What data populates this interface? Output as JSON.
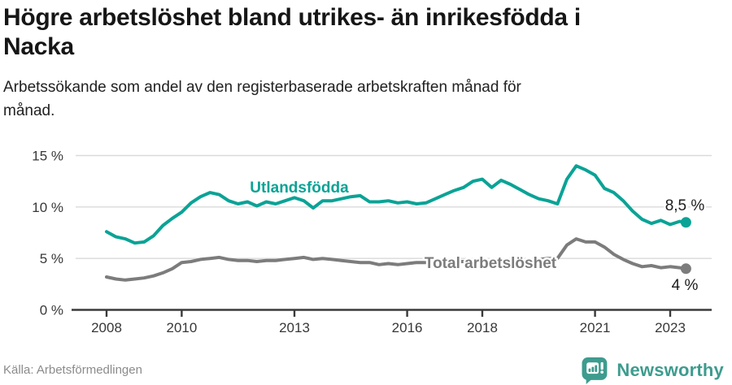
{
  "header": {
    "title_lines": [
      "Högre arbetslöshet bland utrikes- än inrikesfödda i",
      "Nacka"
    ],
    "subtitle_lines": [
      "Arbetssökande som andel av den registerbaserade arbetskraften månad för",
      "månad."
    ]
  },
  "footer": {
    "source": "Källa: Arbetsförmedlingen",
    "brand_name": "Newsworthy",
    "brand_color": "#3d9c8e"
  },
  "chart_data": {
    "type": "line",
    "title": "Högre arbetslöshet bland utrikes- än inrikesfödda i Nacka",
    "subtitle": "Arbetssökande som andel av den registerbaserade arbetskraften månad för månad.",
    "xlabel": "",
    "ylabel": "",
    "y_unit": "%",
    "xlim": [
      2007.1,
      2023.7
    ],
    "ylim": [
      0,
      15
    ],
    "grid": "horizontal",
    "legend_position": "inline-labels",
    "x": [
      2008.0,
      2008.25,
      2008.5,
      2008.75,
      2009.0,
      2009.25,
      2009.5,
      2009.75,
      2010.0,
      2010.25,
      2010.5,
      2010.75,
      2011.0,
      2011.25,
      2011.5,
      2011.75,
      2012.0,
      2012.25,
      2012.5,
      2012.75,
      2013.0,
      2013.25,
      2013.5,
      2013.75,
      2014.0,
      2014.25,
      2014.5,
      2014.75,
      2015.0,
      2015.25,
      2015.5,
      2015.75,
      2016.0,
      2016.25,
      2016.5,
      2016.75,
      2017.0,
      2017.25,
      2017.5,
      2017.75,
      2018.0,
      2018.25,
      2018.5,
      2018.75,
      2019.0,
      2019.25,
      2019.5,
      2019.75,
      2020.0,
      2020.25,
      2020.5,
      2020.75,
      2021.0,
      2021.25,
      2021.5,
      2021.75,
      2022.0,
      2022.25,
      2022.5,
      2022.75,
      2023.0,
      2023.25,
      2023.42
    ],
    "series": [
      {
        "id": "utlandsfodda",
        "name": "Utlandsfödda",
        "color": "#0aa396",
        "end_label": "8,5 %",
        "values": [
          7.6,
          7.1,
          6.9,
          6.5,
          6.6,
          7.2,
          8.2,
          8.9,
          9.5,
          10.4,
          11.0,
          11.4,
          11.2,
          10.6,
          10.3,
          10.5,
          10.1,
          10.5,
          10.3,
          10.6,
          10.9,
          10.6,
          9.9,
          10.6,
          10.6,
          10.8,
          11.0,
          11.1,
          10.5,
          10.5,
          10.6,
          10.4,
          10.5,
          10.3,
          10.4,
          10.8,
          11.2,
          11.6,
          11.9,
          12.5,
          12.7,
          11.9,
          12.6,
          12.2,
          11.7,
          11.2,
          10.8,
          10.6,
          10.3,
          12.7,
          14.0,
          13.6,
          13.1,
          11.8,
          11.4,
          10.6,
          9.6,
          8.8,
          8.4,
          8.7,
          8.3,
          8.6,
          8.5
        ]
      },
      {
        "id": "total",
        "name": "Total arbetslöshet",
        "color": "#7c7c7c",
        "end_label": "4 %",
        "values": [
          3.2,
          3.0,
          2.9,
          3.0,
          3.1,
          3.3,
          3.6,
          4.0,
          4.6,
          4.7,
          4.9,
          5.0,
          5.1,
          4.9,
          4.8,
          4.8,
          4.7,
          4.8,
          4.8,
          4.9,
          5.0,
          5.1,
          4.9,
          5.0,
          4.9,
          4.8,
          4.7,
          4.6,
          4.6,
          4.4,
          4.5,
          4.4,
          4.5,
          4.6,
          4.6,
          4.7,
          4.6,
          4.7,
          4.7,
          4.8,
          4.7,
          4.6,
          4.6,
          4.7,
          4.7,
          4.8,
          4.9,
          5.0,
          5.0,
          6.3,
          6.9,
          6.6,
          6.6,
          6.1,
          5.4,
          4.9,
          4.5,
          4.2,
          4.3,
          4.1,
          4.2,
          4.1,
          4.0
        ]
      }
    ],
    "y_ticks": [
      {
        "label": "15 %",
        "value": 15
      },
      {
        "label": "10 %",
        "value": 10
      },
      {
        "label": "5 %",
        "value": 5
      },
      {
        "label": "0 %",
        "value": 0
      }
    ],
    "x_ticks": [
      {
        "label": "2008",
        "year": 2008
      },
      {
        "label": "2010",
        "year": 2010
      },
      {
        "label": "2013",
        "year": 2013
      },
      {
        "label": "2016",
        "year": 2016
      },
      {
        "label": "2018",
        "year": 2018
      },
      {
        "label": "2021",
        "year": 2021
      },
      {
        "label": "2023",
        "year": 2023
      }
    ]
  }
}
